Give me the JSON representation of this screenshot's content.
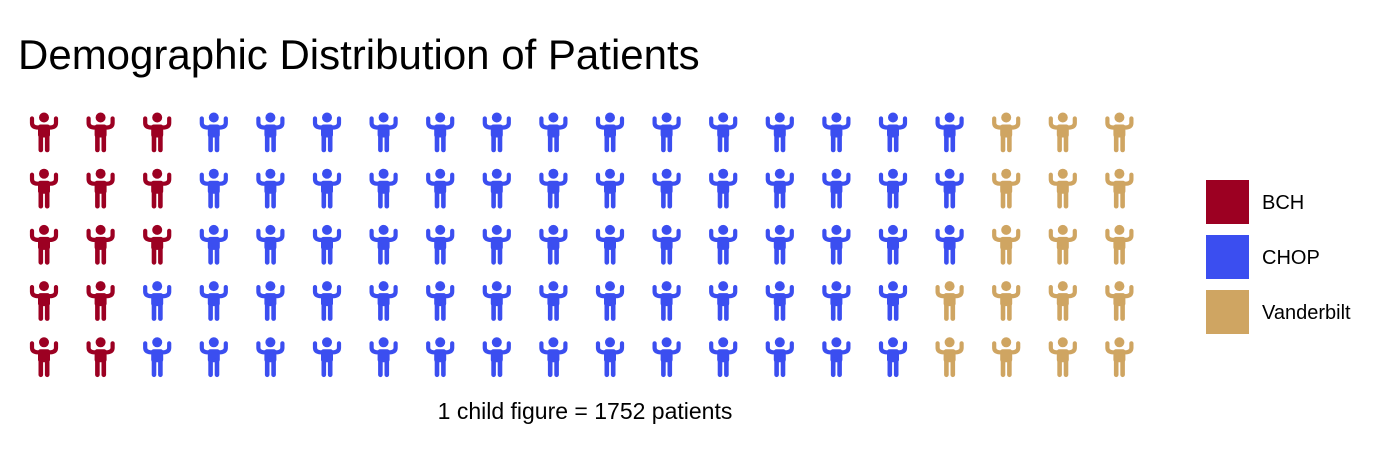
{
  "chart_data": {
    "type": "pictogram",
    "title": "Demographic Distribution of Patients",
    "caption": "1 child figure = 1752 patients",
    "unit_value": 1752,
    "rows": 5,
    "columns": 20,
    "fill_order": "column-major",
    "categories": [
      "BCH",
      "CHOP",
      "Vanderbilt"
    ],
    "values": [
      13,
      70,
      17
    ],
    "colors": [
      "#9c0022",
      "#3b4ef0",
      "#cfa562"
    ],
    "icon": "child-icon",
    "legend_position": "right"
  }
}
